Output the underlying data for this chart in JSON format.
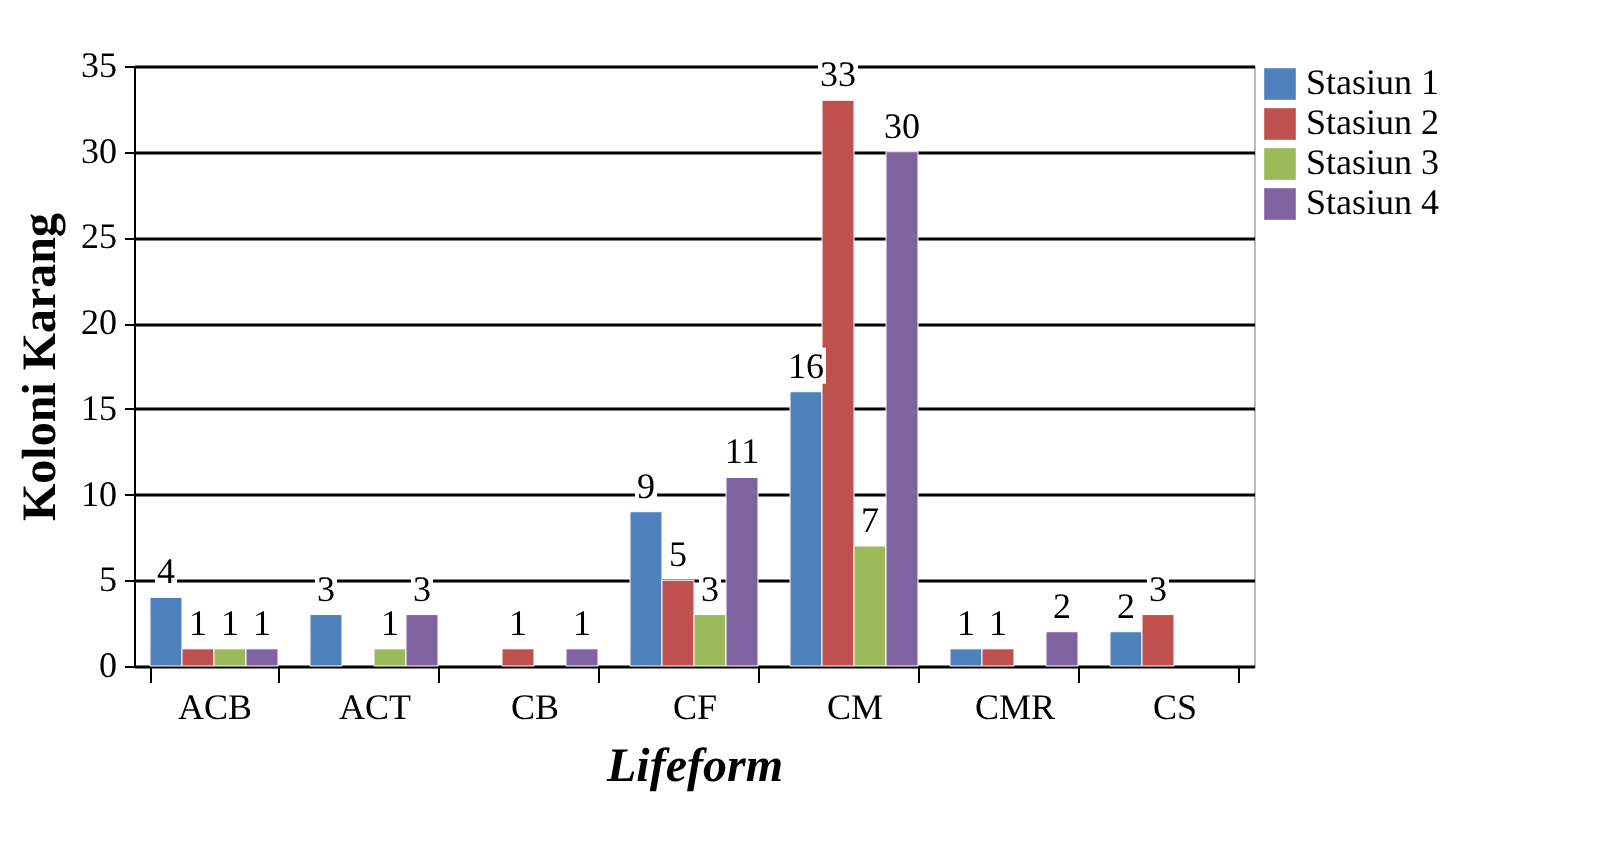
{
  "chart_data": {
    "type": "bar",
    "xlabel": "Lifeform",
    "ylabel": "Koloni Karang",
    "categories": [
      "ACB",
      "ACT",
      "CB",
      "CF",
      "CM",
      "CMR",
      "CS"
    ],
    "series": [
      {
        "name": "Stasiun 1",
        "color": "#4f81bd",
        "values": [
          4,
          3,
          null,
          9,
          16,
          1,
          2
        ]
      },
      {
        "name": "Stasiun 2",
        "color": "#c0504d",
        "values": [
          1,
          null,
          1,
          5,
          33,
          1,
          3
        ]
      },
      {
        "name": "Stasiun 3",
        "color": "#9bbb59",
        "values": [
          1,
          1,
          null,
          3,
          7,
          null,
          null
        ]
      },
      {
        "name": "Stasiun 4",
        "color": "#8064a2",
        "values": [
          1,
          3,
          1,
          11,
          30,
          2,
          null
        ]
      }
    ],
    "ylim": [
      0,
      35
    ],
    "yticks": [
      0,
      5,
      10,
      15,
      20,
      25,
      30,
      35
    ],
    "grid": "y",
    "legend": "right",
    "data_labels": true
  }
}
